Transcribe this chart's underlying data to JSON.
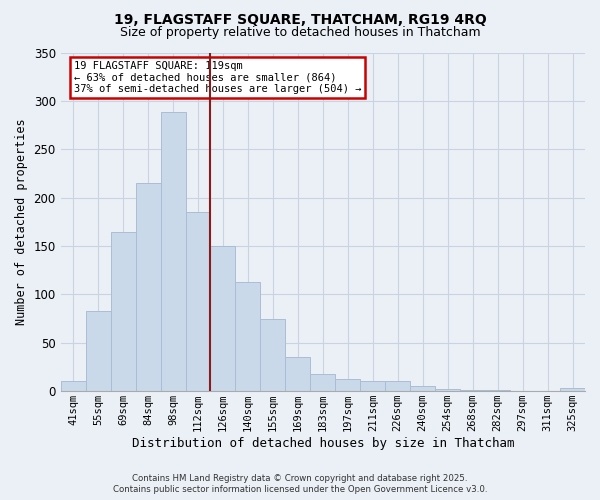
{
  "title": "19, FLAGSTAFF SQUARE, THATCHAM, RG19 4RQ",
  "subtitle": "Size of property relative to detached houses in Thatcham",
  "xlabel": "Distribution of detached houses by size in Thatcham",
  "ylabel": "Number of detached properties",
  "categories": [
    "41sqm",
    "55sqm",
    "69sqm",
    "84sqm",
    "98sqm",
    "112sqm",
    "126sqm",
    "140sqm",
    "155sqm",
    "169sqm",
    "183sqm",
    "197sqm",
    "211sqm",
    "226sqm",
    "240sqm",
    "254sqm",
    "268sqm",
    "282sqm",
    "297sqm",
    "311sqm",
    "325sqm"
  ],
  "values": [
    11,
    83,
    165,
    215,
    288,
    185,
    150,
    113,
    75,
    35,
    18,
    13,
    11,
    10,
    5,
    2,
    1,
    1,
    0,
    0,
    3
  ],
  "bar_color": "#c9d9ea",
  "bar_edge_color": "#aabdd4",
  "grid_color": "#c8d4e0",
  "background_color": "#eaf0f6",
  "property_label": "19 FLAGSTAFF SQUARE: 119sqm",
  "annotation_line1": "← 63% of detached houses are smaller (864)",
  "annotation_line2": "37% of semi-detached houses are larger (504) →",
  "vline_color": "#8b1a1a",
  "annotation_box_edgecolor": "#cc0000",
  "ylim": [
    0,
    350
  ],
  "yticks": [
    0,
    50,
    100,
    150,
    200,
    250,
    300,
    350
  ],
  "footer1": "Contains HM Land Registry data © Crown copyright and database right 2025.",
  "footer2": "Contains public sector information licensed under the Open Government Licence v3.0."
}
